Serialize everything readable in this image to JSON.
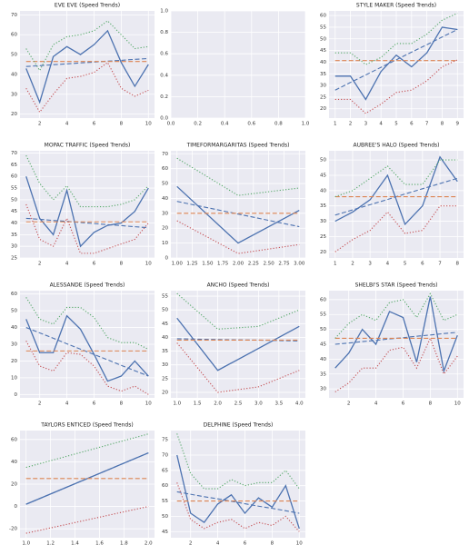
{
  "chart_data": [
    {
      "type": "line",
      "title": "EVE EVE (Speed Trends)",
      "x": [
        1,
        2,
        3,
        4,
        5,
        6,
        7,
        8,
        9,
        10
      ],
      "xlim": [
        0.55,
        10.45
      ],
      "xticks": [
        2,
        4,
        6,
        8,
        10
      ],
      "ylim": [
        18,
        72
      ],
      "yticks": [
        20,
        30,
        40,
        50,
        60,
        70
      ],
      "grid": true,
      "series": [
        {
          "color": "#4c72b0",
          "style": "solid",
          "values": [
            43,
            26,
            49,
            54,
            50,
            55,
            62,
            46,
            34,
            45
          ]
        },
        {
          "color": "#4c72b0",
          "style": "dashed",
          "values": [
            44,
            44.4,
            44.9,
            45.3,
            45.8,
            46.2,
            46.7,
            47.1,
            47.6,
            48
          ]
        },
        {
          "color": "#dd8452",
          "style": "dashed",
          "values": [
            46.5,
            46.5,
            46.5,
            46.5,
            46.5,
            46.5,
            46.5,
            46.5,
            46.5,
            46.5
          ]
        },
        {
          "color": "#55a868",
          "style": "dotted",
          "values": [
            53,
            42,
            55,
            59,
            60,
            62,
            67,
            60,
            53,
            54
          ]
        },
        {
          "color": "#c44e52",
          "style": "dotted",
          "values": [
            33,
            21,
            30,
            38,
            39,
            41,
            46,
            33,
            29,
            32
          ]
        }
      ]
    },
    {
      "type": "line",
      "xlim": [
        0,
        1
      ],
      "xticks": [
        {
          "value": 0,
          "label": "0.0"
        },
        0.2,
        0.4,
        0.6,
        0.8,
        {
          "value": 1,
          "label": "1.0"
        }
      ],
      "ylim": [
        0,
        1
      ],
      "yticks": [
        {
          "value": 0,
          "label": "0.0"
        },
        0.2,
        0.4,
        0.6,
        0.8,
        {
          "value": 1,
          "label": "1.0"
        }
      ],
      "grid": true,
      "series": []
    },
    {
      "type": "line",
      "title": "STYLE MAKER (Speed Trends)",
      "x": [
        1,
        2,
        3,
        4,
        5,
        6,
        7,
        8,
        9
      ],
      "xlim": [
        0.6,
        9.4
      ],
      "xticks": [
        1,
        2,
        3,
        4,
        5,
        6,
        7,
        8,
        9
      ],
      "ylim": [
        16,
        62
      ],
      "yticks": [
        20,
        25,
        30,
        35,
        40,
        45,
        50,
        55,
        60
      ],
      "grid": true,
      "series": [
        {
          "color": "#4c72b0",
          "style": "solid",
          "values": [
            34,
            34,
            24,
            36,
            43,
            38,
            44,
            55,
            54
          ]
        },
        {
          "color": "#4c72b0",
          "style": "dashed",
          "values": [
            28,
            31.3,
            34.5,
            37.8,
            41,
            44.3,
            47.5,
            50.8,
            54
          ]
        },
        {
          "color": "#dd8452",
          "style": "dashed",
          "values": [
            40.7,
            40.7,
            40.7,
            40.7,
            40.7,
            40.7,
            40.7,
            40.7,
            40.7
          ]
        },
        {
          "color": "#55a868",
          "style": "dotted",
          "values": [
            44,
            44,
            39,
            42,
            48,
            48,
            52,
            58,
            61
          ]
        },
        {
          "color": "#c44e52",
          "style": "dotted",
          "values": [
            24,
            24,
            18,
            22,
            27,
            28,
            32,
            38,
            41
          ]
        }
      ]
    },
    {
      "type": "line",
      "title": "MOPAC TRAFFIC (Speed Trends)",
      "x": [
        1,
        2,
        3,
        4,
        5,
        6,
        7,
        8,
        9,
        10
      ],
      "xlim": [
        0.55,
        10.45
      ],
      "xticks": [
        2,
        4,
        6,
        8,
        10
      ],
      "ylim": [
        25,
        71
      ],
      "yticks": [
        25,
        30,
        35,
        40,
        45,
        50,
        55,
        60,
        65,
        70
      ],
      "grid": true,
      "series": [
        {
          "color": "#4c72b0",
          "style": "solid",
          "values": [
            60,
            42,
            35,
            54,
            30,
            36,
            39,
            40,
            45,
            55
          ]
        },
        {
          "color": "#4c72b0",
          "style": "dashed",
          "values": [
            42,
            41.6,
            41.1,
            40.7,
            40.2,
            39.8,
            39.3,
            38.9,
            38.4,
            38
          ]
        },
        {
          "color": "#dd8452",
          "style": "dashed",
          "values": [
            40.5,
            40.5,
            40.5,
            40.5,
            40.5,
            40.5,
            40.5,
            40.5,
            40.5,
            40.5
          ]
        },
        {
          "color": "#55a868",
          "style": "dotted",
          "values": [
            69,
            57,
            50,
            56,
            47,
            47,
            47,
            48,
            50,
            56
          ]
        },
        {
          "color": "#c44e52",
          "style": "dotted",
          "values": [
            48,
            33,
            30,
            42,
            27,
            27,
            29,
            31,
            33,
            40
          ]
        }
      ]
    },
    {
      "type": "line",
      "title": "TIMEFORMARGARITAS (Speed Trends)",
      "x": [
        1,
        2,
        3
      ],
      "xlim": [
        0.9,
        3.1
      ],
      "xticks": [
        {
          "value": 1,
          "label": "1.00"
        },
        1.25,
        {
          "value": 1.5,
          "label": "1.50"
        },
        1.75,
        {
          "value": 2,
          "label": "2.00"
        },
        2.25,
        {
          "value": 2.5,
          "label": "2.50"
        },
        2.75,
        {
          "value": 3,
          "label": "3.00"
        }
      ],
      "ylim": [
        0,
        72
      ],
      "yticks": [
        0,
        10,
        20,
        30,
        40,
        50,
        60,
        70
      ],
      "grid": true,
      "series": [
        {
          "color": "#4c72b0",
          "style": "solid",
          "values": [
            48,
            10,
            32
          ]
        },
        {
          "color": "#4c72b0",
          "style": "dashed",
          "values": [
            38,
            29.5,
            21
          ]
        },
        {
          "color": "#dd8452",
          "style": "dashed",
          "values": [
            30,
            30,
            30
          ]
        },
        {
          "color": "#55a868",
          "style": "dotted",
          "values": [
            67,
            42,
            47
          ]
        },
        {
          "color": "#c44e52",
          "style": "dotted",
          "values": [
            25,
            3,
            9
          ]
        }
      ]
    },
    {
      "type": "line",
      "title": "AUBREE'S HALO (Speed Trends)",
      "x": [
        1,
        2,
        3,
        4,
        5,
        6,
        7,
        8
      ],
      "xlim": [
        0.65,
        8.35
      ],
      "xticks": [
        1,
        2,
        3,
        4,
        5,
        6,
        7,
        8
      ],
      "ylim": [
        18,
        53
      ],
      "yticks": [
        20,
        25,
        30,
        35,
        40,
        45,
        50
      ],
      "grid": true,
      "series": [
        {
          "color": "#4c72b0",
          "style": "solid",
          "values": [
            30,
            33,
            37,
            45,
            29,
            35,
            51,
            43
          ]
        },
        {
          "color": "#4c72b0",
          "style": "dashed",
          "values": [
            32,
            33.7,
            35.4,
            37.1,
            38.9,
            40.6,
            42.3,
            44
          ]
        },
        {
          "color": "#dd8452",
          "style": "dashed",
          "values": [
            38,
            38,
            38,
            38,
            38,
            38,
            38,
            38
          ]
        },
        {
          "color": "#55a868",
          "style": "dotted",
          "values": [
            38,
            40,
            44,
            48,
            42,
            42,
            50,
            50
          ]
        },
        {
          "color": "#c44e52",
          "style": "dotted",
          "values": [
            20,
            24,
            27,
            33,
            26,
            27,
            35,
            35
          ]
        }
      ]
    },
    {
      "type": "line",
      "title": "ALESSANDE (Speed Trends)",
      "x": [
        1,
        2,
        3,
        4,
        5,
        6,
        7,
        8,
        9,
        10
      ],
      "xlim": [
        0.55,
        10.45
      ],
      "xticks": [
        2,
        4,
        6,
        8,
        10
      ],
      "ylim": [
        -2,
        62
      ],
      "yticks": [
        0,
        10,
        20,
        30,
        40,
        50,
        60
      ],
      "grid": true,
      "series": [
        {
          "color": "#4c72b0",
          "style": "solid",
          "values": [
            45,
            25,
            25,
            47,
            39,
            24,
            8,
            11,
            20,
            11
          ]
        },
        {
          "color": "#4c72b0",
          "style": "dashed",
          "values": [
            40,
            36.8,
            33.6,
            30.3,
            27.1,
            23.9,
            20.7,
            17.4,
            14.2,
            11
          ]
        },
        {
          "color": "#dd8452",
          "style": "dashed",
          "values": [
            26,
            26,
            26,
            26,
            26,
            26,
            26,
            26,
            26,
            26
          ]
        },
        {
          "color": "#55a868",
          "style": "dotted",
          "values": [
            58,
            45,
            42,
            52,
            52,
            46,
            34,
            31,
            31,
            27
          ]
        },
        {
          "color": "#c44e52",
          "style": "dotted",
          "values": [
            32,
            17,
            14,
            25,
            24,
            17,
            5,
            2,
            5,
            0
          ]
        }
      ]
    },
    {
      "type": "line",
      "title": "ANCHO (Speed Trends)",
      "x": [
        1,
        2,
        3,
        4
      ],
      "xlim": [
        0.85,
        4.15
      ],
      "xticks": [
        {
          "value": 1,
          "label": "1.0"
        },
        1.5,
        {
          "value": 2,
          "label": "2.0"
        },
        2.5,
        {
          "value": 3,
          "label": "3.0"
        },
        3.5,
        {
          "value": 4,
          "label": "4.0"
        }
      ],
      "ylim": [
        18,
        57
      ],
      "yticks": [
        20,
        25,
        30,
        35,
        40,
        45,
        50,
        55
      ],
      "grid": true,
      "series": [
        {
          "color": "#4c72b0",
          "style": "solid",
          "values": [
            47,
            28,
            36,
            44
          ]
        },
        {
          "color": "#4c72b0",
          "style": "dashed",
          "values": [
            39.5,
            39.2,
            39,
            38.7
          ]
        },
        {
          "color": "#dd8452",
          "style": "dashed",
          "values": [
            39,
            39,
            39,
            39
          ]
        },
        {
          "color": "#55a868",
          "style": "dotted",
          "values": [
            56,
            43,
            44,
            50
          ]
        },
        {
          "color": "#c44e52",
          "style": "dotted",
          "values": [
            38,
            20,
            22,
            28
          ]
        }
      ]
    },
    {
      "type": "line",
      "title": "SHELBI'S STAR (Speed Trends)",
      "x": [
        1,
        2,
        3,
        4,
        5,
        6,
        7,
        8,
        9,
        10
      ],
      "xlim": [
        0.55,
        10.45
      ],
      "xticks": [
        2,
        4,
        6,
        8,
        10
      ],
      "ylim": [
        27,
        63
      ],
      "yticks": [
        30,
        35,
        40,
        45,
        50,
        55,
        60
      ],
      "grid": true,
      "series": [
        {
          "color": "#4c72b0",
          "style": "solid",
          "values": [
            37,
            42,
            50,
            45,
            56,
            54,
            39,
            61,
            36,
            48
          ]
        },
        {
          "color": "#4c72b0",
          "style": "dashed",
          "values": [
            45,
            45.4,
            45.9,
            46.3,
            46.8,
            47.2,
            47.7,
            48.1,
            48.6,
            49
          ]
        },
        {
          "color": "#dd8452",
          "style": "dashed",
          "values": [
            47,
            47,
            47,
            47,
            47,
            47,
            47,
            47,
            47,
            47
          ]
        },
        {
          "color": "#55a868",
          "style": "dotted",
          "values": [
            47,
            52,
            55,
            53,
            59,
            60,
            54,
            62,
            53,
            55
          ]
        },
        {
          "color": "#c44e52",
          "style": "dotted",
          "values": [
            29,
            32,
            37,
            37,
            43,
            44,
            37,
            47,
            35,
            41
          ]
        }
      ]
    },
    {
      "type": "line",
      "title": "TAYLORS ENTICED (Speed Trends)",
      "x": [
        1,
        2
      ],
      "xlim": [
        0.95,
        2.05
      ],
      "xticks": [
        {
          "value": 1,
          "label": "1.0"
        },
        1.2,
        1.4,
        1.6,
        1.8,
        {
          "value": 2,
          "label": "2.0"
        }
      ],
      "ylim": [
        -28,
        68
      ],
      "yticks": [
        -20,
        0,
        20,
        40,
        60
      ],
      "grid": true,
      "series": [
        {
          "color": "#4c72b0",
          "style": "solid",
          "values": [
            2,
            48
          ]
        },
        {
          "color": "#4c72b0",
          "style": "dashed",
          "values": [
            2,
            48
          ]
        },
        {
          "color": "#dd8452",
          "style": "dashed",
          "values": [
            25,
            25
          ]
        },
        {
          "color": "#55a868",
          "style": "dotted",
          "values": [
            35,
            65
          ]
        },
        {
          "color": "#c44e52",
          "style": "dotted",
          "values": [
            -24,
            0
          ]
        }
      ]
    },
    {
      "type": "line",
      "title": "DELPHINE (Speed Trends)",
      "x": [
        1,
        2,
        3,
        4,
        5,
        6,
        7,
        8,
        9,
        10
      ],
      "xlim": [
        0.55,
        10.45
      ],
      "xticks": [
        2,
        4,
        6,
        8,
        10
      ],
      "ylim": [
        43,
        78
      ],
      "yticks": [
        45,
        50,
        55,
        60,
        65,
        70,
        75
      ],
      "grid": true,
      "series": [
        {
          "color": "#4c72b0",
          "style": "solid",
          "values": [
            70,
            51,
            48,
            54,
            57,
            51,
            56,
            53,
            60,
            46
          ]
        },
        {
          "color": "#4c72b0",
          "style": "dashed",
          "values": [
            58,
            57.2,
            56.4,
            55.7,
            54.9,
            54.1,
            53.3,
            52.6,
            51.8,
            51
          ]
        },
        {
          "color": "#dd8452",
          "style": "dashed",
          "values": [
            55,
            55,
            55,
            55,
            55,
            55,
            55,
            55,
            55,
            55
          ]
        },
        {
          "color": "#55a868",
          "style": "dotted",
          "values": [
            77,
            64,
            59,
            59,
            62,
            60,
            61,
            61,
            65,
            59
          ]
        },
        {
          "color": "#c44e52",
          "style": "dotted",
          "values": [
            61,
            49,
            46,
            48,
            49,
            46,
            48,
            47,
            50,
            45
          ]
        }
      ]
    }
  ]
}
